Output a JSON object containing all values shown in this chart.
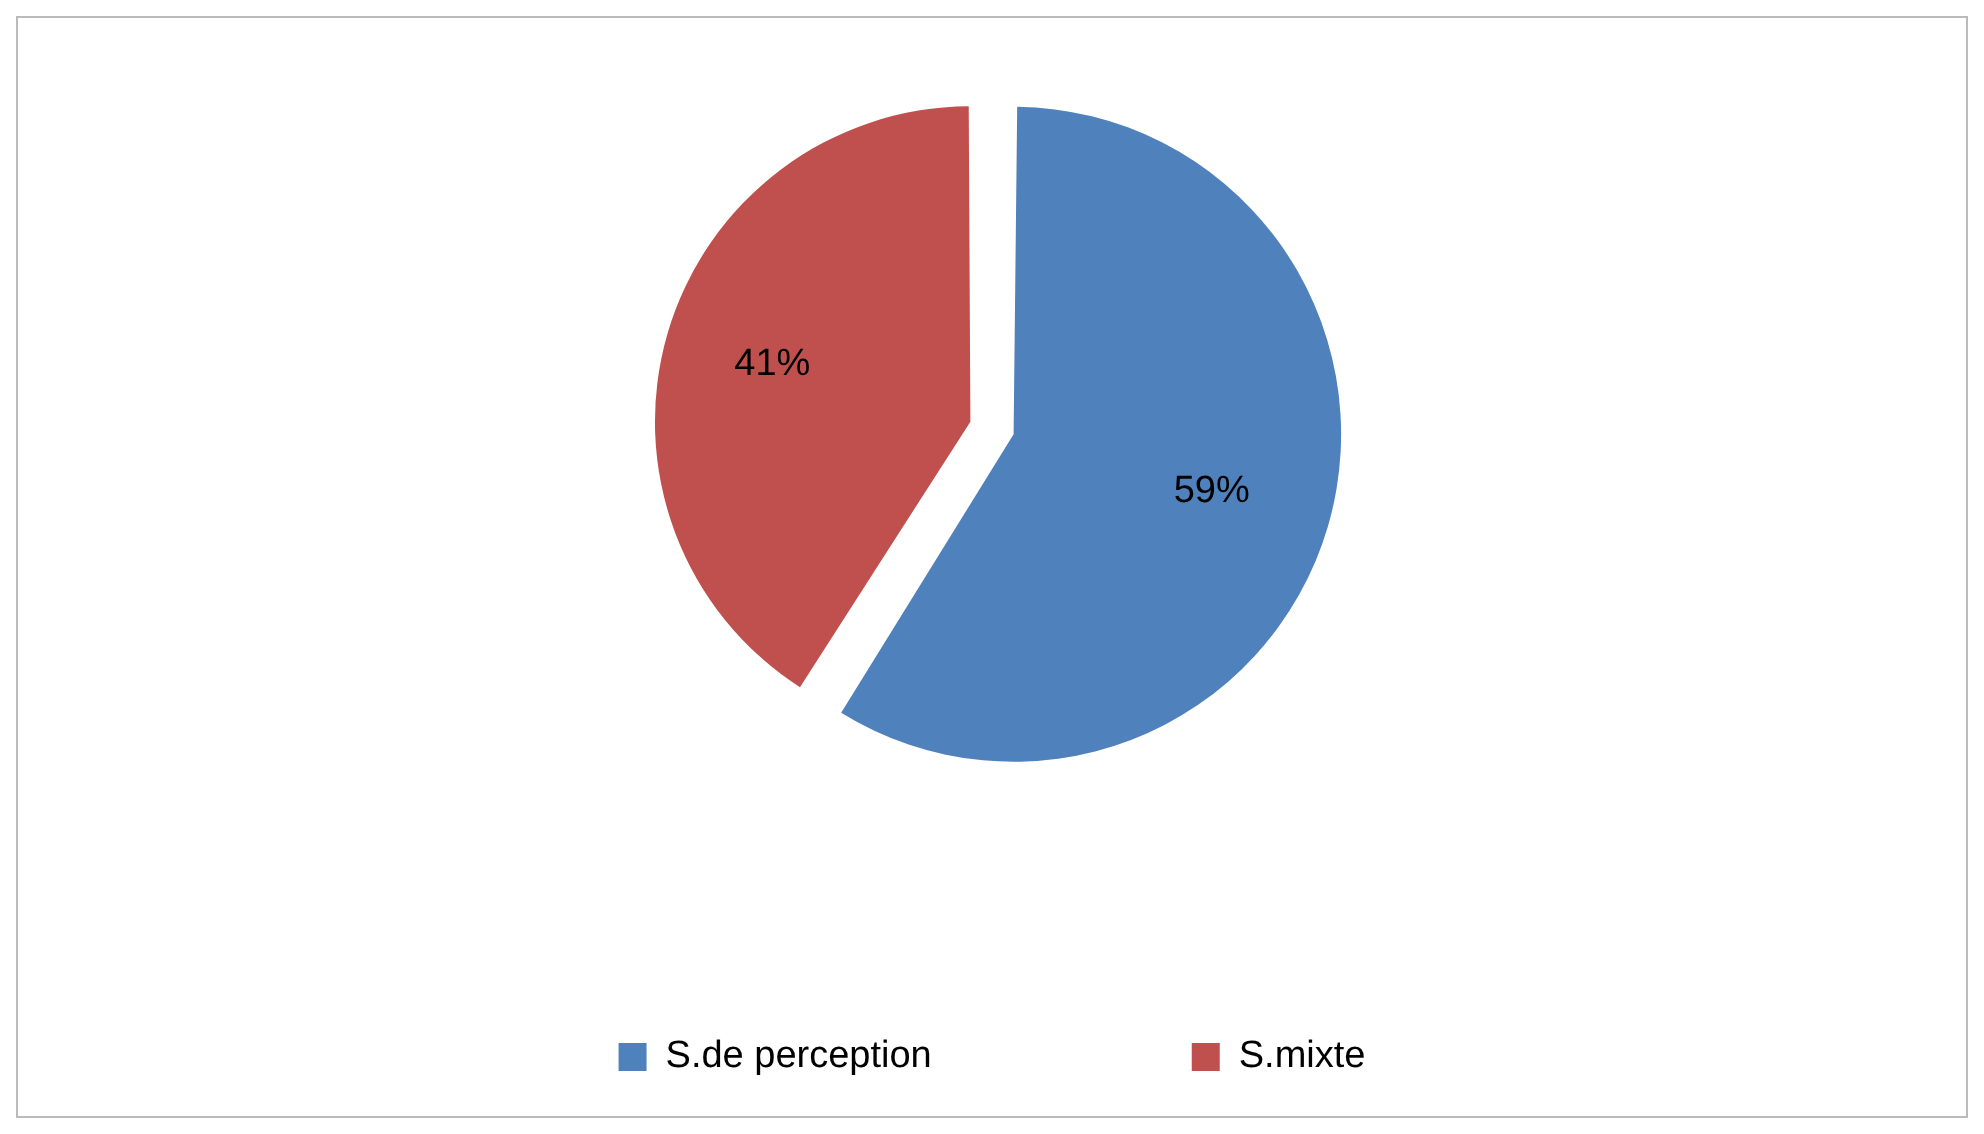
{
  "chart_data": {
    "type": "pie",
    "categories": [
      "S.de perception",
      "S.mixte"
    ],
    "values": [
      59,
      41
    ],
    "colors": [
      "#4f81bd",
      "#c0504d"
    ],
    "value_labels": [
      "59%",
      "41%"
    ],
    "legend": "bottom"
  }
}
